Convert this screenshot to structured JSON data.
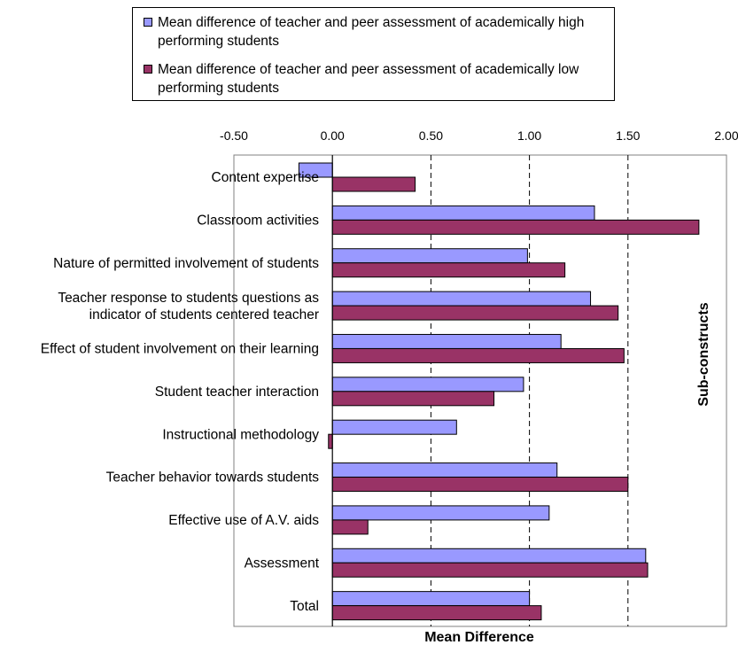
{
  "chart_data": {
    "type": "bar",
    "orientation": "horizontal",
    "categories": [
      "Content expertise",
      "Classroom activities",
      "Nature of permitted involvement of students",
      "Teacher response to students questions as indicator of students centered teacher",
      "Effect of student involvement on their learning",
      "Student teacher interaction",
      "Instructional methodology",
      "Teacher behavior towards students",
      "Effective use of A.V. aids",
      "Assessment",
      "Total"
    ],
    "category_lines": [
      [
        "Content expertise"
      ],
      [
        "Classroom activities"
      ],
      [
        "Nature of permitted involvement of students"
      ],
      [
        "Teacher response to students questions as",
        "indicator of students centered teacher"
      ],
      [
        "Effect of student involvement on their learning"
      ],
      [
        "Student teacher interaction"
      ],
      [
        "Instructional methodology"
      ],
      [
        "Teacher behavior towards students"
      ],
      [
        "Effective use of A.V. aids"
      ],
      [
        "Assessment"
      ],
      [
        "Total"
      ]
    ],
    "series": [
      {
        "name": "Mean difference of teacher and peer assessment of academically high performing students",
        "color": "#9999ff",
        "values": [
          -0.17,
          1.33,
          0.99,
          1.31,
          1.16,
          0.97,
          0.63,
          1.14,
          1.1,
          1.59,
          1.0
        ]
      },
      {
        "name": "Mean difference of teacher and peer assessment of academically low performing students",
        "color": "#993366",
        "values": [
          0.42,
          1.86,
          1.18,
          1.45,
          1.48,
          0.82,
          -0.02,
          1.5,
          0.18,
          1.6,
          1.06
        ]
      }
    ],
    "xlabel": "Mean Difference",
    "ylabel": "Sub-constructs",
    "xlim": [
      -0.5,
      2.0
    ],
    "xticks": [
      "-0.50",
      "0.00",
      "0.50",
      "1.00",
      "1.50",
      "2.00"
    ],
    "xtick_values": [
      -0.5,
      0,
      0.5,
      1.0,
      1.5,
      2.0
    ],
    "x_axis_position": "top",
    "grid": "vertical dashed",
    "legend_position": "top"
  }
}
